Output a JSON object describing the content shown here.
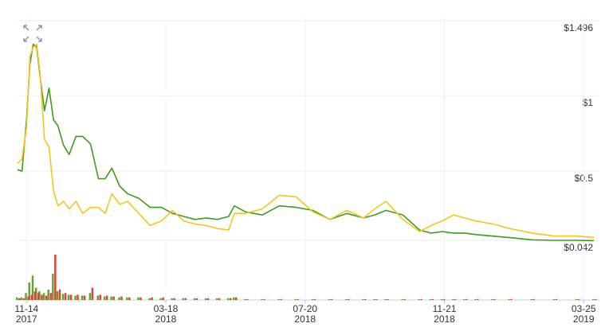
{
  "chart_data": {
    "type": "line",
    "x": [
      "2017-11-06",
      "2017-11-10",
      "2017-11-14",
      "2017-11-17",
      "2017-11-20",
      "2017-11-23",
      "2017-11-26",
      "2017-11-30",
      "2017-12-04",
      "2017-12-08",
      "2017-12-12",
      "2017-12-17",
      "2017-12-22",
      "2017-12-28",
      "2018-01-03",
      "2018-01-10",
      "2018-01-17",
      "2018-01-23",
      "2018-01-29",
      "2018-02-05",
      "2018-02-12",
      "2018-02-22",
      "2018-03-04",
      "2018-03-14",
      "2018-03-24",
      "2018-04-03",
      "2018-04-13",
      "2018-04-23",
      "2018-05-03",
      "2018-05-13",
      "2018-05-18",
      "2018-05-28",
      "2018-06-12",
      "2018-06-27",
      "2018-07-12",
      "2018-07-27",
      "2018-08-11",
      "2018-08-26",
      "2018-09-10",
      "2018-09-20",
      "2018-09-30",
      "2018-10-15",
      "2018-10-30",
      "2018-11-09",
      "2018-11-19",
      "2018-11-29",
      "2018-12-09",
      "2018-12-19",
      "2019-01-03",
      "2019-01-18",
      "2019-02-07",
      "2019-02-27",
      "2019-03-19",
      "2019-04-03"
    ],
    "series": [
      {
        "color": "#3f9b1f",
        "values": [
          0.51,
          0.5,
          0.84,
          1.21,
          1.34,
          1.32,
          1.13,
          0.9,
          1.05,
          0.84,
          0.8,
          0.67,
          0.61,
          0.73,
          0.73,
          0.68,
          0.45,
          0.45,
          0.52,
          0.4,
          0.35,
          0.32,
          0.26,
          0.26,
          0.22,
          0.2,
          0.18,
          0.19,
          0.18,
          0.2,
          0.27,
          0.23,
          0.21,
          0.27,
          0.26,
          0.24,
          0.18,
          0.22,
          0.19,
          0.21,
          0.24,
          0.21,
          0.11,
          0.09,
          0.1,
          0.09,
          0.09,
          0.08,
          0.07,
          0.06,
          0.045,
          0.042,
          0.042,
          0.04
        ]
      },
      {
        "color": "#f4c51c",
        "values": [
          0.55,
          0.58,
          0.79,
          1.26,
          1.32,
          1.34,
          1.15,
          0.71,
          0.66,
          0.37,
          0.27,
          0.3,
          0.25,
          0.3,
          0.22,
          0.26,
          0.26,
          0.22,
          0.35,
          0.28,
          0.3,
          0.22,
          0.14,
          0.17,
          0.24,
          0.17,
          0.15,
          0.14,
          0.12,
          0.11,
          0.22,
          0.22,
          0.25,
          0.34,
          0.33,
          0.23,
          0.18,
          0.24,
          0.19,
          0.25,
          0.3,
          0.18,
          0.1,
          0.14,
          0.17,
          0.21,
          0.19,
          0.17,
          0.15,
          0.12,
          0.09,
          0.07,
          0.07,
          0.06
        ]
      }
    ],
    "volume_series": [
      {
        "color": "#5aa82c",
        "values": [
          3,
          3,
          8,
          20,
          28,
          14,
          10,
          8,
          12,
          30,
          10,
          7,
          6,
          5,
          5,
          8,
          5,
          4,
          4,
          3,
          3,
          3,
          2,
          2,
          2,
          2,
          2,
          2,
          2,
          2,
          3,
          1,
          1,
          1,
          1,
          1,
          1,
          1,
          1,
          1,
          1,
          1,
          1,
          1,
          1,
          1,
          1,
          1,
          1,
          1,
          1,
          1,
          1,
          1
        ]
      },
      {
        "color": "#e2403a",
        "values": [
          2,
          2,
          4,
          6,
          10,
          8,
          6,
          5,
          8,
          52,
          12,
          8,
          6,
          6,
          5,
          14,
          6,
          5,
          4,
          4,
          3,
          3,
          3,
          3,
          2,
          2,
          2,
          2,
          2,
          2,
          3,
          1,
          1,
          1,
          1,
          1,
          1,
          1,
          1,
          1,
          1,
          1,
          1,
          1,
          1,
          1,
          1,
          1,
          1,
          1,
          1,
          1,
          1,
          1
        ]
      }
    ],
    "xlim": [
      "2017-11-06",
      "2019-04-08"
    ],
    "xticks": [
      {
        "value": "2017-11-14",
        "label": "11-14 2017"
      },
      {
        "value": "2018-03-18",
        "label": "03-18 2018"
      },
      {
        "value": "2018-07-20",
        "label": "07-20 2018"
      },
      {
        "value": "2018-11-21",
        "label": "11-21 2018"
      },
      {
        "value": "2019-03-25",
        "label": "03-25 2019"
      }
    ],
    "ylim": [
      0.042,
      1.496
    ],
    "yticks": [
      {
        "value": 1.496,
        "label": "$1.496"
      },
      {
        "value": 1,
        "label": "$1"
      },
      {
        "value": 0.5,
        "label": "$0.5"
      },
      {
        "value": 0.042,
        "label": "$0.042"
      }
    ],
    "grid": true
  }
}
